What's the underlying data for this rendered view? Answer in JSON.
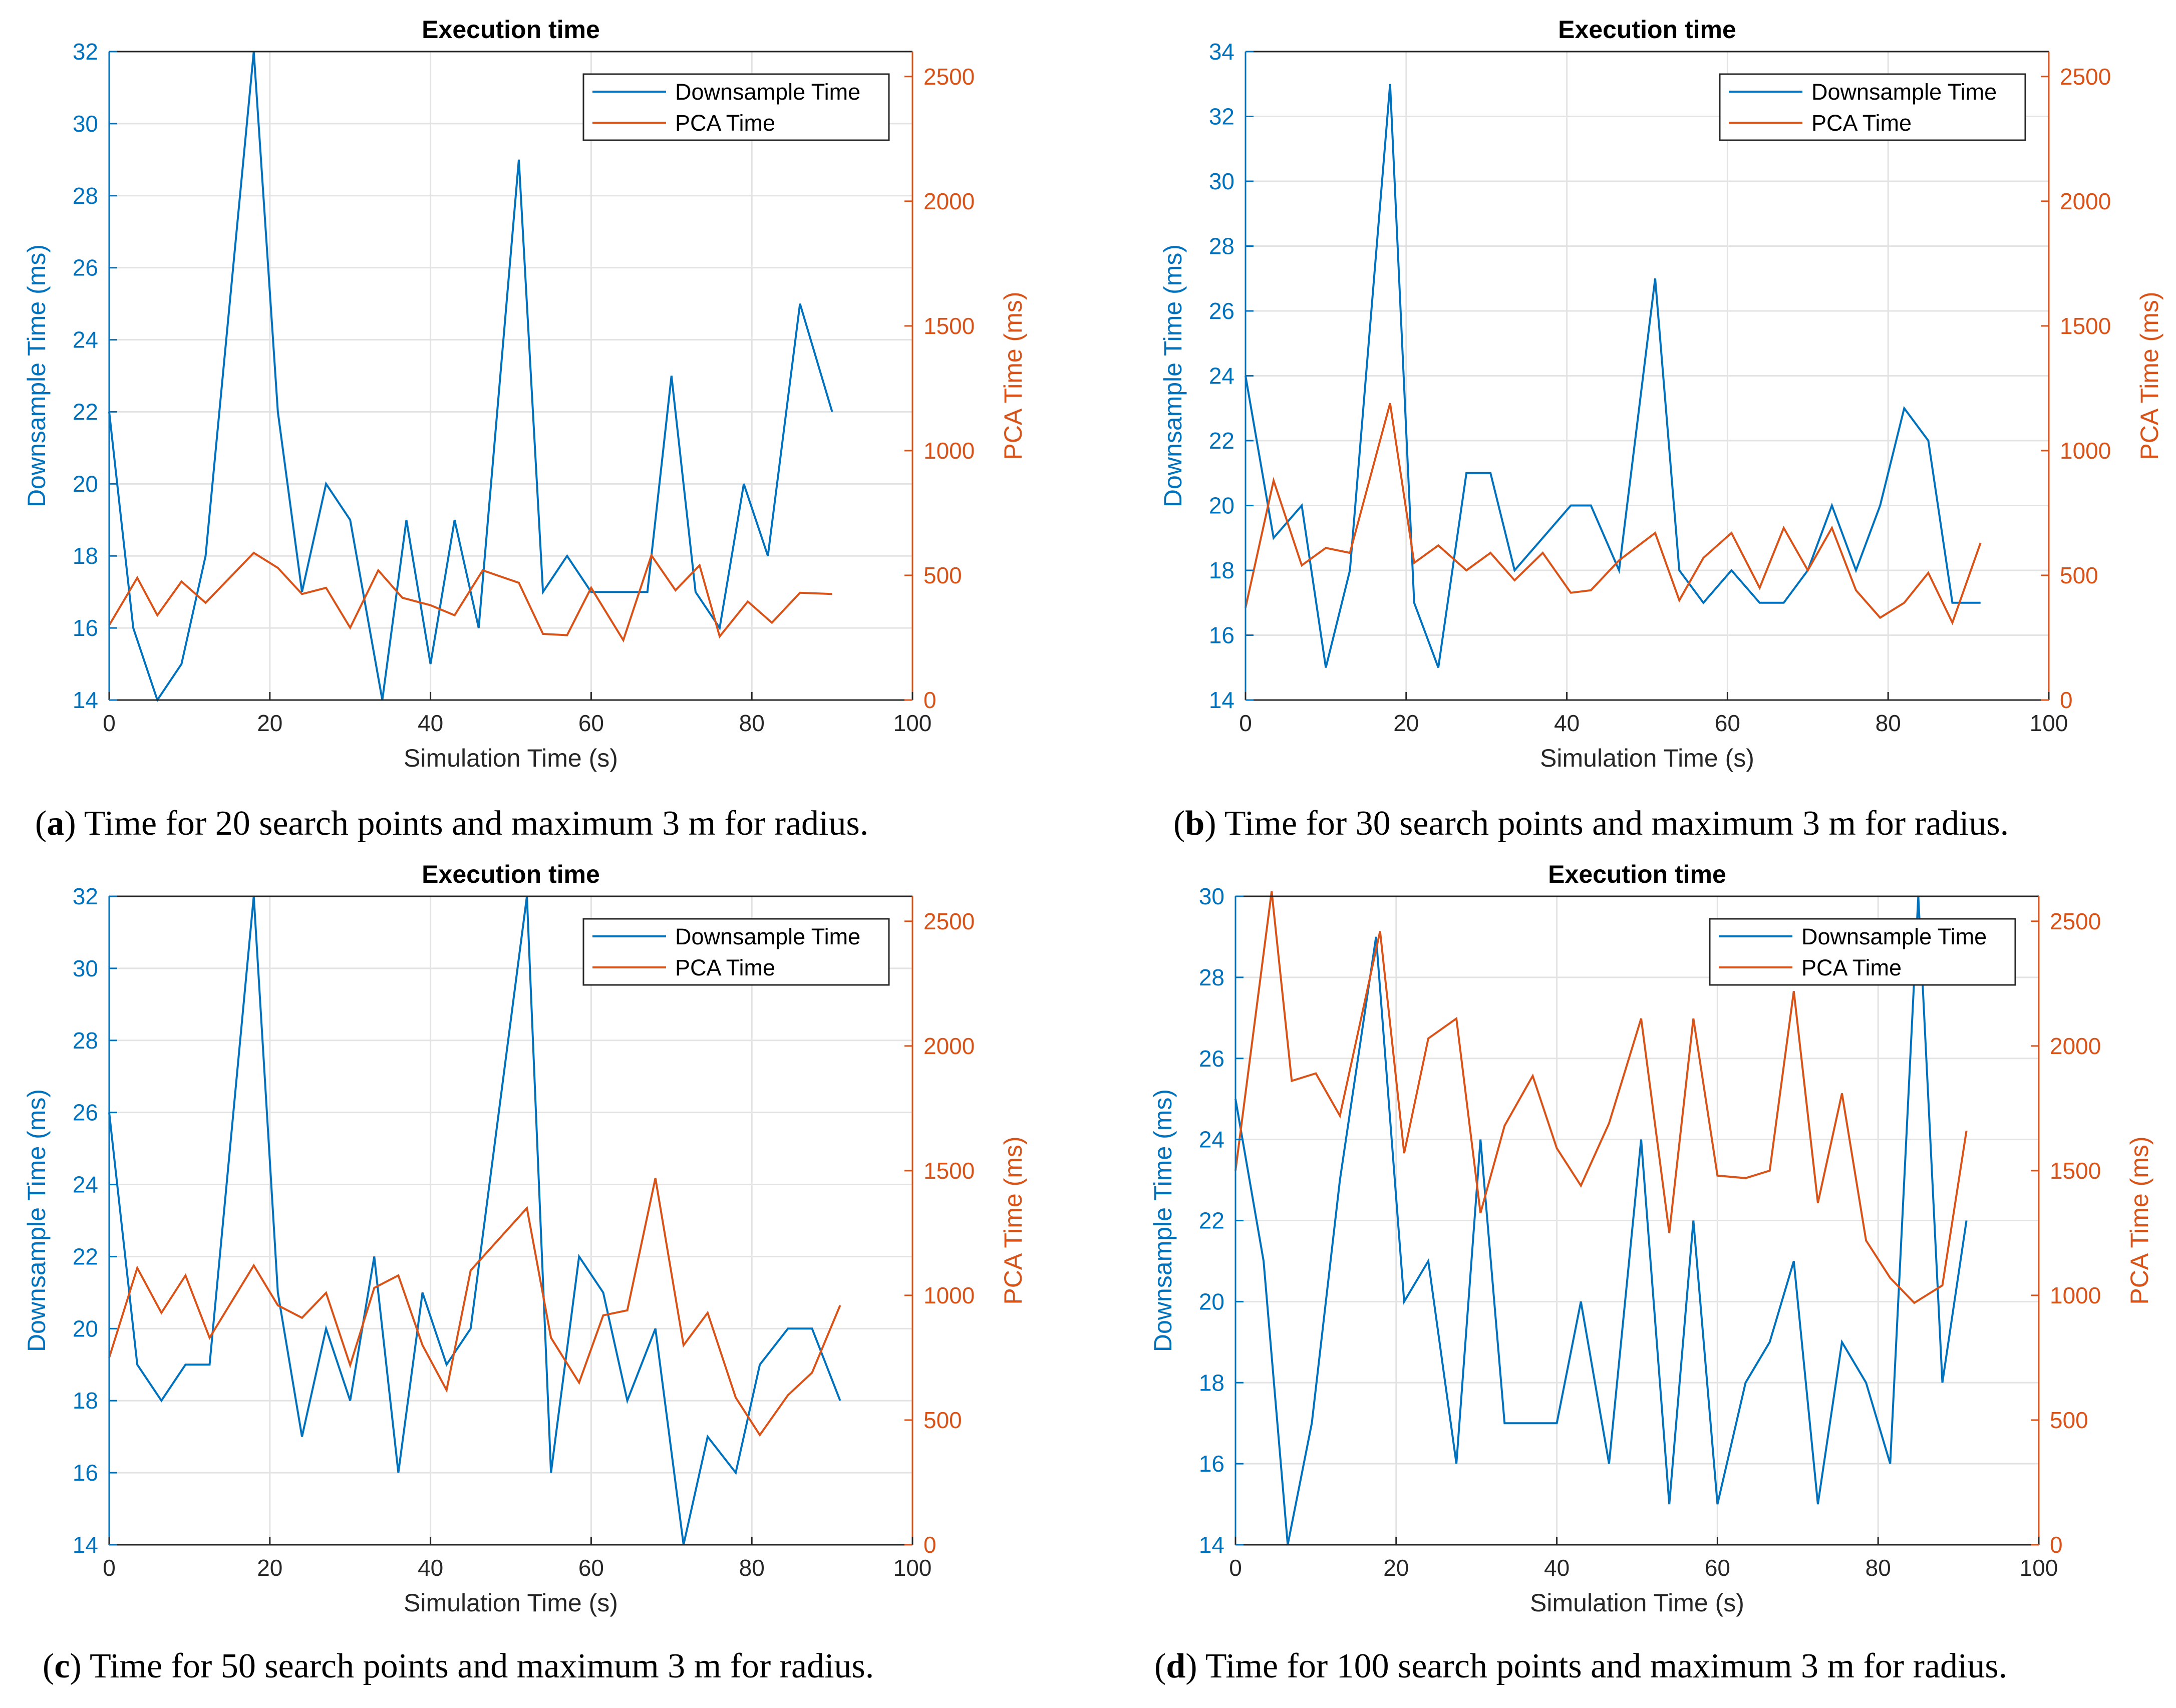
{
  "colors": {
    "downsample": "#0072BD",
    "pca": "#D95319",
    "grid": "#e3e3e3",
    "axis": "#262626"
  },
  "panels": [
    {
      "caption": {
        "letter": "a",
        "text": "Time for 20 search points and maximum 3 m for radius."
      },
      "chart_data": {
        "type": "line",
        "title": "Execution time",
        "xlabel": "Simulation Time (s)",
        "ylabel_left": "Downsample Time (ms)",
        "ylabel_right": "PCA Time (ms)",
        "xlim": [
          0,
          100
        ],
        "xticks": [
          0,
          20,
          40,
          60,
          80,
          100
        ],
        "ylim_left": [
          14,
          32
        ],
        "yticks_left": [
          14,
          16,
          18,
          20,
          22,
          24,
          26,
          28,
          30,
          32
        ],
        "ylim_right": [
          0,
          2600
        ],
        "yticks_right": [
          0,
          500,
          1000,
          1500,
          2000,
          2500
        ],
        "grid": true,
        "legend": {
          "position": "top-right",
          "entries": [
            "Downsample Time",
            "PCA Time"
          ]
        },
        "series": [
          {
            "name": "Downsample Time",
            "axis": "left",
            "x": [
              0,
              3,
              6,
              9,
              12,
              18,
              21,
              24,
              27,
              30,
              34,
              37,
              40,
              43,
              46,
              51,
              54,
              57,
              60,
              64,
              67,
              70,
              73,
              76,
              79,
              82,
              86,
              90
            ],
            "y": [
              22,
              16,
              14,
              15,
              18,
              32,
              22,
              17,
              20,
              19,
              14,
              19,
              15,
              19,
              16,
              29,
              17,
              18,
              17,
              17,
              17,
              23,
              17,
              16,
              20,
              18,
              25,
              22
            ]
          },
          {
            "name": "PCA Time",
            "axis": "right",
            "x": [
              0,
              3.5,
              6,
              9,
              12,
              18,
              21,
              24,
              27,
              30,
              33.5,
              36.5,
              40,
              43,
              46.5,
              51,
              54,
              57,
              60,
              64,
              67.5,
              70.5,
              73.5,
              76,
              79.5,
              82.5,
              86,
              90
            ],
            "y": [
              300,
              490,
              340,
              475,
              390,
              590,
              530,
              425,
              450,
              290,
              520,
              410,
              380,
              340,
              520,
              470,
              265,
              260,
              450,
              240,
              580,
              440,
              540,
              255,
              395,
              310,
              430,
              425
            ]
          }
        ]
      }
    },
    {
      "caption": {
        "letter": "b",
        "text": "Time for 30 search points and maximum 3 m for radius."
      },
      "chart_data": {
        "type": "line",
        "title": "Execution time",
        "xlabel": "Simulation Time (s)",
        "ylabel_left": "Downsample Time (ms)",
        "ylabel_right": "PCA Time (ms)",
        "xlim": [
          0,
          100
        ],
        "xticks": [
          0,
          20,
          40,
          60,
          80,
          100
        ],
        "ylim_left": [
          14,
          34
        ],
        "yticks_left": [
          14,
          16,
          18,
          20,
          22,
          24,
          26,
          28,
          30,
          32,
          34
        ],
        "ylim_right": [
          0,
          2600
        ],
        "yticks_right": [
          0,
          500,
          1000,
          1500,
          2000,
          2500
        ],
        "grid": true,
        "legend": {
          "position": "top-right",
          "entries": [
            "Downsample Time",
            "PCA Time"
          ]
        },
        "series": [
          {
            "name": "Downsample Time",
            "axis": "left",
            "x": [
              0,
              3.5,
              7,
              10,
              13,
              18,
              21,
              24,
              27.5,
              30.5,
              33.5,
              37,
              40.5,
              43,
              46.5,
              51,
              54,
              57,
              60.5,
              64,
              67,
              70,
              73,
              76,
              79,
              82,
              85,
              88,
              91.5
            ],
            "y": [
              24,
              19,
              20,
              15,
              18,
              33,
              17,
              15,
              21,
              21,
              18,
              19,
              20,
              20,
              18,
              27,
              18,
              17,
              18,
              17,
              17,
              18,
              20,
              18,
              20,
              23,
              22,
              17,
              17
            ]
          },
          {
            "name": "PCA Time",
            "axis": "right",
            "x": [
              0,
              3.5,
              7,
              10,
              13,
              18,
              21,
              24,
              27.5,
              30.5,
              33.5,
              37,
              40.5,
              43,
              46.5,
              51,
              54,
              57,
              60.5,
              64,
              67,
              70,
              73,
              76,
              79,
              82,
              85,
              88,
              91.5
            ],
            "y": [
              370,
              880,
              540,
              610,
              590,
              1190,
              550,
              620,
              520,
              590,
              480,
              590,
              430,
              440,
              560,
              670,
              400,
              570,
              670,
              450,
              690,
              520,
              690,
              440,
              330,
              390,
              510,
              310,
              630
            ]
          }
        ]
      }
    },
    {
      "caption": {
        "letter": "c",
        "text": "Time for 50 search points and maximum 3 m for radius."
      },
      "chart_data": {
        "type": "line",
        "title": "Execution time",
        "xlabel": "Simulation Time (s)",
        "ylabel_left": "Downsample Time (ms)",
        "ylabel_right": "PCA Time (ms)",
        "xlim": [
          0,
          100
        ],
        "xticks": [
          0,
          20,
          40,
          60,
          80,
          100
        ],
        "ylim_left": [
          14,
          32
        ],
        "yticks_left": [
          14,
          16,
          18,
          20,
          22,
          24,
          26,
          28,
          30,
          32
        ],
        "ylim_right": [
          0,
          2600
        ],
        "yticks_right": [
          0,
          500,
          1000,
          1500,
          2000,
          2500
        ],
        "grid": true,
        "legend": {
          "position": "top-right",
          "entries": [
            "Downsample Time",
            "PCA Time"
          ]
        },
        "series": [
          {
            "name": "Downsample Time",
            "axis": "left",
            "x": [
              0,
              3.5,
              6.5,
              9.5,
              12.5,
              18,
              21,
              24,
              27,
              30,
              33,
              36,
              39,
              42,
              45,
              52,
              55,
              58.5,
              61.5,
              64.5,
              68,
              71.5,
              74.5,
              78,
              81,
              84.5,
              87.5,
              91
            ],
            "y": [
              26,
              19,
              18,
              19,
              19,
              32,
              21,
              17,
              20,
              18,
              22,
              16,
              21,
              19,
              20,
              32,
              16,
              22,
              21,
              18,
              20,
              14,
              17,
              16,
              19,
              20,
              20,
              18
            ]
          },
          {
            "name": "PCA Time",
            "axis": "right",
            "x": [
              0,
              3.5,
              6.5,
              9.5,
              12.5,
              18,
              21,
              24,
              27,
              30,
              33,
              36,
              39,
              42,
              45,
              52,
              55,
              58.5,
              61.5,
              64.5,
              68,
              71.5,
              74.5,
              78,
              81,
              84.5,
              87.5,
              91
            ],
            "y": [
              750,
              1110,
              930,
              1080,
              830,
              1120,
              960,
              910,
              1010,
              720,
              1030,
              1080,
              800,
              620,
              1100,
              1350,
              830,
              650,
              920,
              940,
              1470,
              800,
              930,
              590,
              440,
              600,
              690,
              960
            ]
          }
        ]
      }
    },
    {
      "caption": {
        "letter": "d",
        "text": "Time for 100 search points and maximum 3 m for radius."
      },
      "chart_data": {
        "type": "line",
        "title": "Execution time",
        "xlabel": "Simulation Time (s)",
        "ylabel_left": "Downsample Time (ms)",
        "ylabel_right": "PCA Time (ms)",
        "xlim": [
          0,
          100
        ],
        "xticks": [
          0,
          20,
          40,
          60,
          80,
          100
        ],
        "ylim_left": [
          14,
          30
        ],
        "yticks_left": [
          14,
          16,
          18,
          20,
          22,
          24,
          26,
          28,
          30
        ],
        "ylim_right": [
          0,
          2600
        ],
        "yticks_right": [
          0,
          500,
          1000,
          1500,
          2000,
          2500
        ],
        "grid": true,
        "legend": {
          "position": "top-right",
          "entries": [
            "Downsample Time",
            "PCA Time"
          ]
        },
        "series": [
          {
            "name": "Downsample Time",
            "axis": "left",
            "x": [
              0,
              3.5,
              6.5,
              9.5,
              13,
              17.5,
              21,
              24,
              27.5,
              30.5,
              33.5,
              37,
              40,
              43,
              46.5,
              50.5,
              54,
              57,
              60,
              63.5,
              66.5,
              69.5,
              72.5,
              75.5,
              78.5,
              81.5,
              85,
              88,
              91
            ],
            "y": [
              25,
              21,
              14,
              17,
              23,
              29,
              20,
              21,
              16,
              24,
              17,
              17,
              17,
              20,
              16,
              24,
              15,
              22,
              15,
              18,
              19,
              21,
              15,
              19,
              18,
              16,
              30,
              18,
              22
            ]
          },
          {
            "name": "PCA Time",
            "axis": "right",
            "x": [
              0,
              4.5,
              7,
              10,
              13,
              18,
              21,
              24,
              27.5,
              30.5,
              33.5,
              37,
              40,
              43,
              46.5,
              50.5,
              54,
              57,
              60,
              63.5,
              66.5,
              69.5,
              72.5,
              75.5,
              78.5,
              81.5,
              84.5,
              88,
              91
            ],
            "y": [
              1500,
              2620,
              1860,
              1890,
              1720,
              2460,
              1570,
              2030,
              2110,
              1330,
              1680,
              1880,
              1590,
              1440,
              1690,
              2110,
              1250,
              2110,
              1480,
              1470,
              1500,
              2220,
              1370,
              1810,
              1220,
              1070,
              970,
              1040,
              1660
            ]
          }
        ]
      }
    }
  ]
}
